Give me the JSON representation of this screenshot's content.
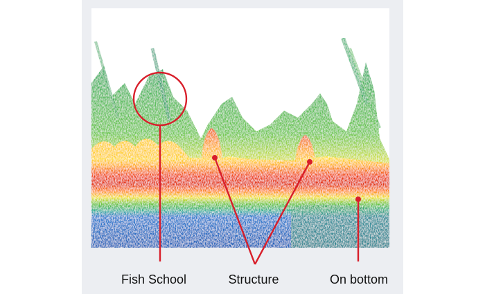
{
  "labels": {
    "fish_school": "Fish School",
    "structure": "Structure",
    "on_bottom": "On bottom"
  }
}
